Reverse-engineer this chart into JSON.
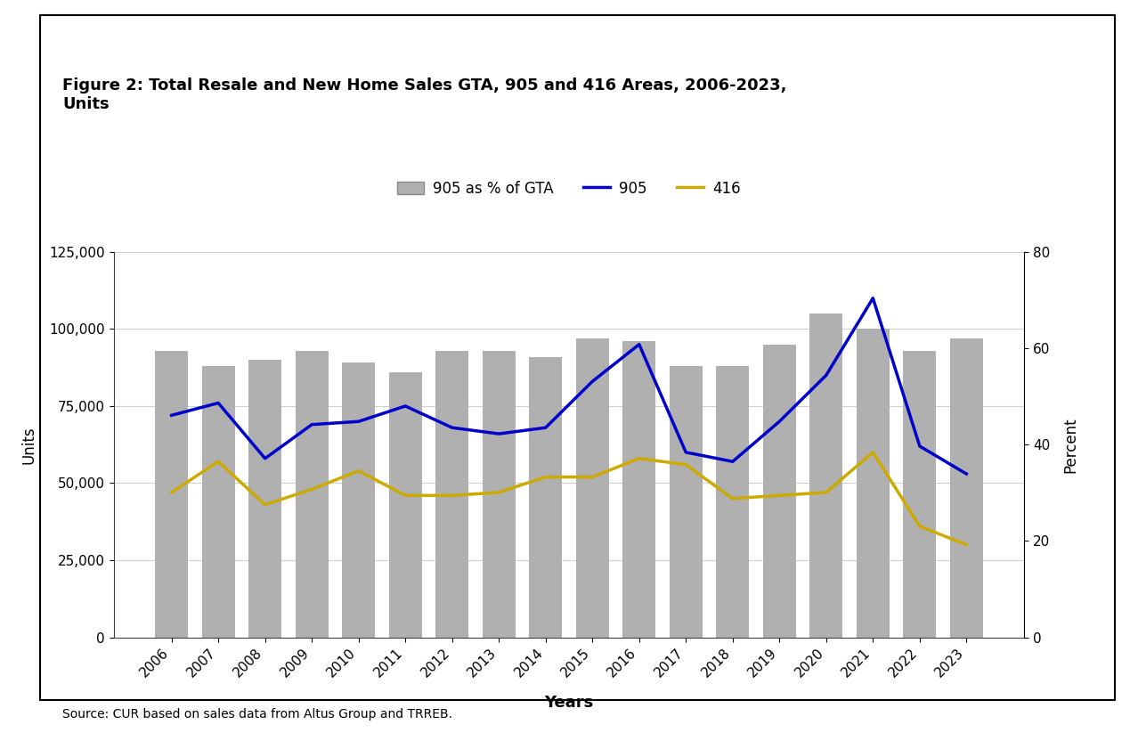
{
  "title_line1": "Figure 2: Total Resale and New Home Sales GTA, 905 and 416 Areas, 2006-2023,",
  "title_line2": "Units",
  "xlabel": "Years",
  "ylabel_left": "Units",
  "ylabel_right": "Percent",
  "source": "Source: CUR based on sales data from Altus Group and TRREB.",
  "years": [
    2006,
    2007,
    2008,
    2009,
    2010,
    2011,
    2012,
    2013,
    2014,
    2015,
    2016,
    2017,
    2018,
    2019,
    2020,
    2021,
    2022,
    2023
  ],
  "bar_vals": [
    93000,
    88000,
    90000,
    93000,
    89000,
    86000,
    93000,
    93000,
    91000,
    97000,
    96000,
    88000,
    88000,
    95000,
    105000,
    100000,
    93000,
    97000
  ],
  "line_905": [
    72000,
    76000,
    58000,
    69000,
    70000,
    75000,
    68000,
    66000,
    68000,
    83000,
    95000,
    60000,
    57000,
    70000,
    85000,
    110000,
    62000,
    53000
  ],
  "line_416": [
    47000,
    57000,
    43000,
    48000,
    54000,
    46000,
    46000,
    47000,
    52000,
    52000,
    58000,
    56000,
    45000,
    46000,
    47000,
    60000,
    36000,
    30000
  ],
  "bar_color": "#b0b0b0",
  "line_905_color": "#0000cc",
  "line_416_color": "#ccaa00",
  "ylim_left": [
    0,
    125000
  ],
  "ylim_right": [
    0,
    80
  ],
  "yticks_left": [
    0,
    25000,
    50000,
    75000,
    100000,
    125000
  ],
  "yticks_right": [
    0,
    20,
    40,
    60,
    80
  ],
  "background_color": "#ffffff",
  "figure_bg": "#ffffff"
}
